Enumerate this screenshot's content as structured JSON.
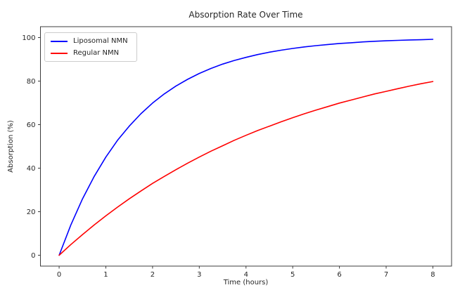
{
  "chart_data": {
    "type": "line",
    "title": "Absorption Rate Over Time",
    "xlabel": "Time (hours)",
    "ylabel": "Absorption (%)",
    "x": [
      0,
      0.25,
      0.5,
      0.75,
      1,
      1.25,
      1.5,
      1.75,
      2,
      2.25,
      2.5,
      2.75,
      3,
      3.25,
      3.5,
      3.75,
      4,
      4.25,
      4.5,
      4.75,
      5,
      5.25,
      5.5,
      5.75,
      6,
      6.25,
      6.5,
      6.75,
      7,
      7.25,
      7.5,
      7.75,
      8
    ],
    "series": [
      {
        "name": "Liposomal NMN",
        "color": "#0000ff",
        "values": [
          0,
          13.9,
          25.9,
          36.2,
          45.1,
          52.8,
          59.3,
          65.0,
          69.9,
          74.1,
          77.7,
          80.8,
          83.5,
          85.8,
          87.8,
          89.5,
          90.9,
          92.2,
          93.3,
          94.2,
          95.0,
          95.7,
          96.3,
          96.8,
          97.3,
          97.6,
          98.0,
          98.3,
          98.5,
          98.7,
          98.9,
          99.0,
          99.2
        ]
      },
      {
        "name": "Regular NMN",
        "color": "#ff0000",
        "values": [
          0,
          4.9,
          9.5,
          13.9,
          18.1,
          22.1,
          25.9,
          29.5,
          33.0,
          36.2,
          39.3,
          42.3,
          45.1,
          47.8,
          50.3,
          52.8,
          55.1,
          57.3,
          59.3,
          61.3,
          63.2,
          65.0,
          66.7,
          68.3,
          69.9,
          71.3,
          72.7,
          74.1,
          75.3,
          76.5,
          77.7,
          78.8,
          79.8
        ]
      }
    ],
    "xticks": [
      0,
      1,
      2,
      3,
      4,
      5,
      6,
      7,
      8
    ],
    "yticks": [
      0,
      20,
      40,
      60,
      80,
      100
    ],
    "xlim": [
      -0.4,
      8.4
    ],
    "ylim": [
      -5,
      105
    ],
    "grid": false,
    "legend_position": "upper-left",
    "spine_color": "#3c3c3c",
    "text_color": "#262626"
  }
}
